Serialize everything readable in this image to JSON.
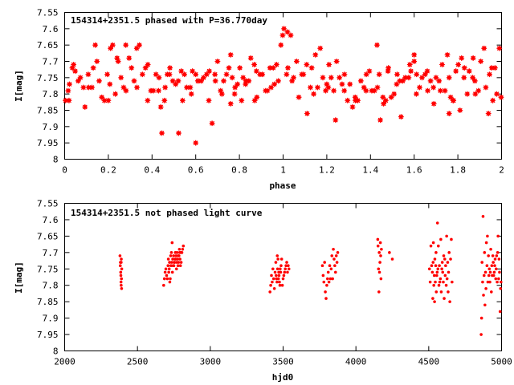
{
  "colors": {
    "points": "#ff0000",
    "axes": "#000000",
    "background": "#ffffff"
  },
  "chart_data": [
    {
      "type": "scatter",
      "title": "154314+2351.5 phased with P=36.770day",
      "xlabel": "phase",
      "ylabel": "I[mag]",
      "xlim": [
        0,
        2
      ],
      "ylim": [
        7.55,
        8
      ],
      "y_inverted": true,
      "grid": false,
      "marker": "star",
      "x_ticks": [
        "0",
        "0.2",
        "0.4",
        "0.6",
        "0.8",
        "1",
        "1.2",
        "1.4",
        "1.6",
        "1.8",
        "2"
      ],
      "y_ticks": [
        "7.55",
        "7.6",
        "7.65",
        "7.7",
        "7.75",
        "7.8",
        "7.85",
        "7.9",
        "7.95",
        "8"
      ],
      "x": [
        0.004,
        0.022,
        0.048,
        0.072,
        0.093,
        0.125,
        0.148,
        0.17,
        0.195,
        0.22,
        0.245,
        0.27,
        0.295,
        0.318,
        0.342,
        0.37,
        0.395,
        0.418,
        0.445,
        0.47,
        0.495,
        0.522,
        0.548,
        0.575,
        0.6,
        0.625,
        0.65,
        0.675,
        0.7,
        0.728,
        0.752,
        0.778,
        0.802,
        0.828,
        0.852,
        0.878,
        0.905,
        0.928,
        0.955,
        0.978,
        0.998,
        0.016,
        0.041,
        0.062,
        0.086,
        0.108,
        0.131,
        0.158,
        0.182,
        0.207,
        0.232,
        0.258,
        0.281,
        0.306,
        0.331,
        0.356,
        0.381,
        0.406,
        0.432,
        0.457,
        0.482,
        0.508,
        0.534,
        0.559,
        0.585,
        0.611,
        0.636,
        0.662,
        0.688,
        0.714,
        0.741,
        0.767,
        0.791,
        0.817,
        0.843,
        0.868,
        0.894,
        0.92,
        0.945,
        0.97,
        0.035,
        0.11,
        0.21,
        0.33,
        0.44,
        0.52,
        0.58,
        0.61,
        0.66,
        0.76,
        0.87,
        0.96,
        0.14,
        0.38,
        0.54,
        0.69,
        0.81,
        0.94,
        0.28,
        0.46,
        0.72,
        0.83,
        0.99,
        0.24,
        0.78,
        0.2,
        0.43,
        0.6,
        0.76,
        0.88,
        0.02,
        0.48,
        1.004,
        1.022,
        1.048,
        1.072,
        1.093,
        1.125,
        1.148,
        1.17,
        1.195,
        1.22,
        1.245,
        1.27,
        1.295,
        1.318,
        1.342,
        1.37,
        1.395,
        1.418,
        1.445,
        1.47,
        1.495,
        1.522,
        1.548,
        1.575,
        1.6,
        1.625,
        1.65,
        1.675,
        1.7,
        1.728,
        1.752,
        1.778,
        1.802,
        1.828,
        1.852,
        1.878,
        1.905,
        1.928,
        1.955,
        1.978,
        1.998,
        1.016,
        1.041,
        1.062,
        1.086,
        1.108,
        1.131,
        1.158,
        1.182,
        1.207,
        1.232,
        1.258,
        1.281,
        1.306,
        1.331,
        1.356,
        1.381,
        1.406,
        1.432,
        1.457,
        1.482,
        1.508,
        1.534,
        1.559,
        1.585,
        1.611,
        1.636,
        1.662,
        1.688,
        1.714,
        1.741,
        1.767,
        1.791,
        1.817,
        1.843,
        1.868,
        1.894,
        1.92,
        1.945,
        1.97,
        1.035,
        1.11,
        1.21,
        1.33,
        1.44,
        1.52,
        1.58,
        1.61,
        1.66,
        1.76,
        1.87,
        1.96,
        1.14,
        1.38,
        1.54,
        1.69,
        1.81,
        1.94,
        1.28,
        1.46,
        1.72,
        1.83,
        1.99,
        1.24,
        1.78,
        1.2,
        1.43,
        1.6,
        1.76,
        1.88,
        1.02,
        1.48
      ],
      "y": [
        7.82,
        7.77,
        7.73,
        7.75,
        7.84,
        7.78,
        7.7,
        7.81,
        7.74,
        7.65,
        7.7,
        7.78,
        7.69,
        7.76,
        7.65,
        7.72,
        7.79,
        7.74,
        7.92,
        7.74,
        7.76,
        7.92,
        7.74,
        7.78,
        7.95,
        7.76,
        7.74,
        7.89,
        7.7,
        7.76,
        7.72,
        7.8,
        7.72,
        7.77,
        7.69,
        7.73,
        7.74,
        7.79,
        7.72,
        7.76,
        7.62,
        7.79,
        7.71,
        7.76,
        7.78,
        7.74,
        7.72,
        7.76,
        7.82,
        7.77,
        7.8,
        7.75,
        7.79,
        7.72,
        7.78,
        7.74,
        7.71,
        7.79,
        7.75,
        7.82,
        7.72,
        7.77,
        7.73,
        7.78,
        7.73,
        7.76,
        7.75,
        7.73,
        7.74,
        7.79,
        7.74,
        7.75,
        7.77,
        7.75,
        7.76,
        7.71,
        7.74,
        7.79,
        7.78,
        7.71,
        7.72,
        7.78,
        7.66,
        7.66,
        7.84,
        7.76,
        7.8,
        7.76,
        7.82,
        7.68,
        7.82,
        7.77,
        7.65,
        7.82,
        7.82,
        7.76,
        7.82,
        7.72,
        7.65,
        7.78,
        7.8,
        7.76,
        7.65,
        7.69,
        7.78,
        7.82,
        7.79,
        7.74,
        7.83,
        7.81,
        7.82,
        7.74,
        7.6,
        7.72,
        7.75,
        7.81,
        7.74,
        7.78,
        7.68,
        7.66,
        7.79,
        7.75,
        7.7,
        7.77,
        7.82,
        7.84,
        7.82,
        7.78,
        7.73,
        7.79,
        7.88,
        7.82,
        7.81,
        7.74,
        7.76,
        7.75,
        7.68,
        7.78,
        7.74,
        7.76,
        7.75,
        7.71,
        7.68,
        7.82,
        7.71,
        7.75,
        7.73,
        7.76,
        7.7,
        7.78,
        7.72,
        7.8,
        7.81,
        7.74,
        7.76,
        7.7,
        7.74,
        7.71,
        7.72,
        7.78,
        7.75,
        7.78,
        7.79,
        7.75,
        7.74,
        7.77,
        7.82,
        7.76,
        7.74,
        7.79,
        7.78,
        7.81,
        7.72,
        7.8,
        7.76,
        7.75,
        7.73,
        7.74,
        7.75,
        7.79,
        7.78,
        7.76,
        7.79,
        7.81,
        7.73,
        7.69,
        7.8,
        7.75,
        7.79,
        7.66,
        7.74,
        7.72,
        7.62,
        7.86,
        7.71,
        7.81,
        7.74,
        7.77,
        7.71,
        7.8,
        7.73,
        7.86,
        7.69,
        7.82,
        7.8,
        7.79,
        7.87,
        7.83,
        7.85,
        7.86,
        7.79,
        7.83,
        7.79,
        7.72,
        7.66,
        7.88,
        7.82,
        7.77,
        7.65,
        7.7,
        7.75,
        7.8,
        7.61,
        7.73
      ]
    },
    {
      "type": "scatter",
      "title": "154314+2351.5 not phased light curve",
      "xlabel": "hjd0",
      "ylabel": "I[mag]",
      "xlim": [
        2000,
        5000
      ],
      "ylim": [
        7.55,
        8
      ],
      "y_inverted": true,
      "grid": false,
      "marker": "dot",
      "x_ticks": [
        "2000",
        "2500",
        "3000",
        "3500",
        "4000",
        "4500",
        "5000"
      ],
      "y_ticks": [
        "7.55",
        "7.6",
        "7.65",
        "7.7",
        "7.75",
        "7.8",
        "7.85",
        "7.9",
        "7.95",
        "8"
      ],
      "x": [
        2380,
        2382,
        2383,
        2385,
        2386,
        2387,
        2388,
        2388,
        2389,
        2390,
        2391,
        2392,
        2680,
        2685,
        2690,
        2695,
        2700,
        2705,
        2710,
        2712,
        2715,
        2718,
        2720,
        2722,
        2725,
        2728,
        2730,
        2733,
        2735,
        2738,
        2740,
        2742,
        2745,
        2748,
        2750,
        2752,
        2755,
        2758,
        2760,
        2762,
        2765,
        2768,
        2770,
        2772,
        2775,
        2778,
        2780,
        2782,
        2785,
        2788,
        2790,
        2792,
        2795,
        2798,
        2800,
        2805,
        2810,
        2815,
        3410,
        3415,
        3420,
        3425,
        3430,
        3435,
        3440,
        3445,
        3450,
        3452,
        3455,
        3458,
        3460,
        3462,
        3465,
        3468,
        3470,
        3472,
        3475,
        3478,
        3480,
        3483,
        3486,
        3490,
        3495,
        3500,
        3505,
        3510,
        3515,
        3520,
        3525,
        3530,
        3535,
        3540,
        3770,
        3775,
        3780,
        3785,
        3790,
        3795,
        3800,
        3805,
        3810,
        3815,
        3820,
        3825,
        3830,
        3835,
        3840,
        3845,
        3850,
        3855,
        3860,
        3865,
        3870,
        3875,
        4150,
        4152,
        4155,
        4158,
        4160,
        4162,
        4165,
        4168,
        4170,
        4172,
        4175,
        4230,
        4250,
        4505,
        4510,
        4515,
        4520,
        4525,
        4528,
        4530,
        4532,
        4535,
        4538,
        4540,
        4542,
        4545,
        4548,
        4550,
        4552,
        4555,
        4558,
        4560,
        4563,
        4566,
        4570,
        4573,
        4576,
        4580,
        4583,
        4586,
        4590,
        4593,
        4596,
        4600,
        4603,
        4606,
        4610,
        4613,
        4616,
        4620,
        4623,
        4626,
        4630,
        4633,
        4636,
        4640,
        4645,
        4650,
        4655,
        4660,
        4860,
        4863,
        4866,
        4870,
        4873,
        4876,
        4880,
        4883,
        4886,
        4890,
        4893,
        4896,
        4900,
        4903,
        4906,
        4910,
        4913,
        4916,
        4920,
        4923,
        4926,
        4930,
        4933,
        4936,
        4940,
        4943,
        4946,
        4950,
        4953,
        4956,
        4960,
        4963,
        4966,
        4970,
        4973,
        4976,
        4980,
        4983,
        4986,
        4990,
        4993,
        4996
      ],
      "y": [
        7.71,
        7.74,
        7.73,
        7.76,
        7.77,
        7.79,
        7.73,
        7.8,
        7.72,
        7.78,
        7.81,
        7.75,
        7.8,
        7.78,
        7.76,
        7.75,
        7.77,
        7.78,
        7.74,
        7.72,
        7.76,
        7.75,
        7.73,
        7.79,
        7.78,
        7.71,
        7.74,
        7.7,
        7.73,
        7.67,
        7.76,
        7.72,
        7.74,
        7.71,
        7.74,
        7.73,
        7.73,
        7.72,
        7.7,
        7.72,
        7.71,
        7.75,
        7.73,
        7.7,
        7.72,
        7.74,
        7.71,
        7.73,
        7.71,
        7.69,
        7.7,
        7.72,
        7.74,
        7.7,
        7.73,
        7.7,
        7.69,
        7.68,
        7.82,
        7.8,
        7.77,
        7.79,
        7.75,
        7.78,
        7.81,
        7.76,
        7.73,
        7.77,
        7.78,
        7.79,
        7.71,
        7.75,
        7.72,
        7.78,
        7.76,
        7.77,
        7.79,
        7.8,
        7.75,
        7.76,
        7.74,
        7.72,
        7.8,
        7.78,
        7.77,
        7.76,
        7.75,
        7.74,
        7.73,
        7.76,
        7.74,
        7.75,
        7.74,
        7.77,
        7.79,
        7.73,
        7.82,
        7.84,
        7.8,
        7.78,
        7.76,
        7.79,
        7.74,
        7.78,
        7.75,
        7.71,
        7.78,
        7.69,
        7.72,
        7.74,
        7.76,
        7.71,
        7.73,
        7.7,
        7.66,
        7.68,
        7.75,
        7.82,
        7.7,
        7.76,
        7.73,
        7.67,
        7.71,
        7.78,
        7.69,
        7.7,
        7.72,
        7.75,
        7.79,
        7.68,
        7.74,
        7.76,
        7.84,
        7.73,
        7.67,
        7.8,
        7.77,
        7.85,
        7.72,
        7.79,
        7.74,
        7.7,
        7.82,
        7.77,
        7.76,
        7.61,
        7.75,
        7.68,
        7.8,
        7.74,
        7.79,
        7.78,
        7.66,
        7.82,
        7.75,
        7.73,
        7.76,
        7.79,
        7.71,
        7.84,
        7.72,
        7.77,
        7.74,
        7.8,
        7.65,
        7.78,
        7.73,
        7.82,
        7.76,
        7.7,
        7.85,
        7.72,
        7.66,
        7.79,
        7.95,
        7.9,
        7.73,
        7.79,
        7.59,
        7.83,
        7.77,
        7.7,
        7.86,
        7.76,
        7.81,
        7.67,
        7.74,
        7.65,
        7.79,
        7.71,
        7.77,
        7.75,
        7.79,
        7.76,
        7.69,
        7.82,
        7.74,
        7.77,
        7.71,
        7.73,
        7.77,
        7.76,
        7.74,
        7.72,
        7.78,
        7.75,
        7.71,
        7.79,
        7.7,
        7.65,
        7.78,
        7.72,
        7.76,
        7.88,
        7.81,
        7.79
      ]
    }
  ]
}
